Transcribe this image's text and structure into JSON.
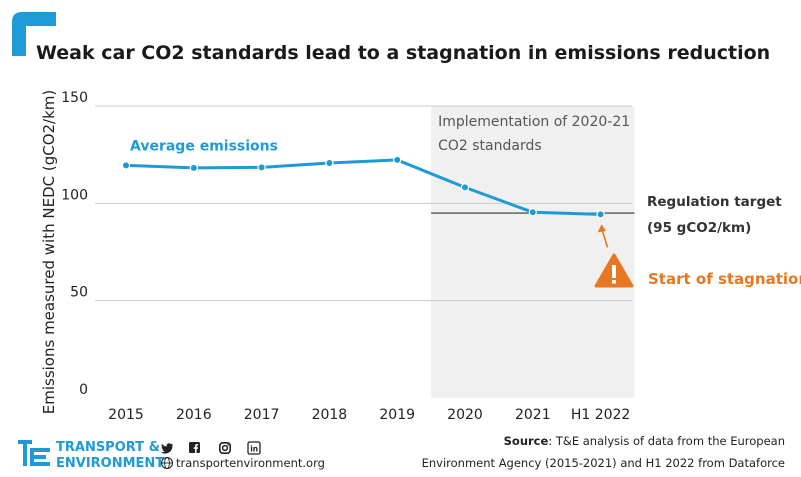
{
  "chart_data": {
    "type": "line",
    "title": "Weak car CO2 standards lead to a stagnation in emissions reduction",
    "ylabel": "Emissions measured with NEDC (gCO2/km)",
    "xlabel": "",
    "ylim": [
      0,
      150
    ],
    "yticks": [
      0,
      50,
      100,
      150
    ],
    "grid": true,
    "categories": [
      "2015",
      "2016",
      "2017",
      "2018",
      "2019",
      "2020",
      "2021",
      "H1 2022"
    ],
    "series": [
      {
        "name": "Average emissions",
        "values": [
          119.5,
          118.2,
          118.5,
          120.7,
          122.3,
          108.2,
          95.4,
          94.3
        ]
      }
    ],
    "regulation_target": {
      "value": 95,
      "label_line1": "Regulation target",
      "label_line2": "(95 gCO2/km)"
    },
    "shaded_period": {
      "from": "2020",
      "to": "H1 2022",
      "label_line1": "Implementation of 2020-21",
      "label_line2": "CO2 standards"
    },
    "stagnation_annotation": "Start of stagnation",
    "colors": {
      "line": "#1e9ad6",
      "target": "#333333",
      "shade": "#f0f0f0",
      "warning": "#e87722",
      "grid": "#cccccc"
    }
  },
  "footer": {
    "brand_line1": "TRANSPORT &",
    "brand_line2": "ENVIRONMENT",
    "url": "transportenvironment.org",
    "social_icons": [
      "twitter-icon",
      "facebook-icon",
      "instagram-icon",
      "linkedin-icon"
    ],
    "source_label": "Source",
    "source_line1": ": T&E analysis of data from the European",
    "source_line2": "Environment Agency (2015-2021) and H1 2022 from Dataforce"
  }
}
